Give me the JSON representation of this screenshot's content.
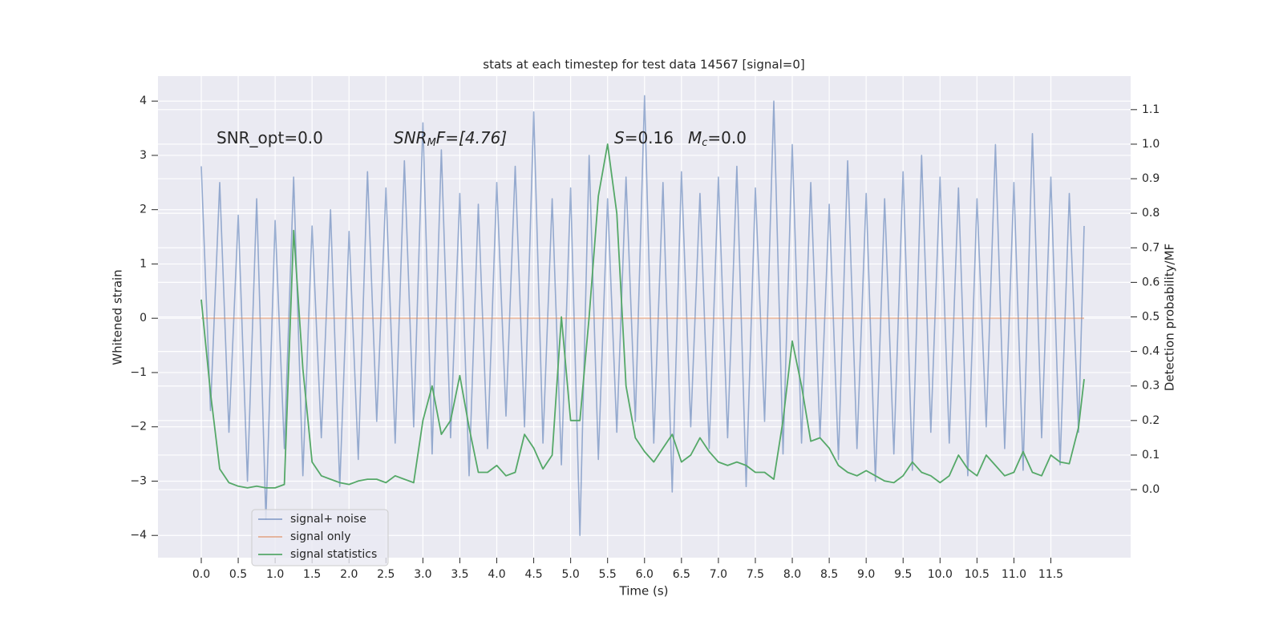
{
  "chart_data": {
    "type": "line",
    "title": "stats at each timestep for test data 14567 [signal=0]",
    "xlabel": "Time (s)",
    "ylabel": "Whitened strain",
    "y2label": "Detection probability/MF",
    "annotations": [
      {
        "parts": [
          "SNR_opt=0.0"
        ]
      },
      {
        "parts": [
          "SNR",
          "M",
          "F=[4.76]"
        ]
      },
      {
        "parts": [
          "S",
          "=0.16"
        ]
      },
      {
        "parts": [
          "M",
          "c",
          "=0.0"
        ]
      }
    ],
    "x": [
      0,
      0.125,
      0.25,
      0.375,
      0.5,
      0.625,
      0.75,
      0.875,
      1.0,
      1.125,
      1.25,
      1.375,
      1.5,
      1.625,
      1.75,
      1.875,
      2.0,
      2.125,
      2.25,
      2.375,
      2.5,
      2.625,
      2.75,
      2.875,
      3.0,
      3.125,
      3.25,
      3.375,
      3.5,
      3.625,
      3.75,
      3.875,
      4.0,
      4.125,
      4.25,
      4.375,
      4.5,
      4.625,
      4.75,
      4.875,
      5.0,
      5.125,
      5.25,
      5.375,
      5.5,
      5.625,
      5.75,
      5.875,
      6.0,
      6.125,
      6.25,
      6.375,
      6.5,
      6.625,
      6.75,
      6.875,
      7.0,
      7.125,
      7.25,
      7.375,
      7.5,
      7.625,
      7.75,
      7.875,
      8.0,
      8.125,
      8.25,
      8.375,
      8.5,
      8.625,
      8.75,
      8.875,
      9.0,
      9.125,
      9.25,
      9.375,
      9.5,
      9.625,
      9.75,
      9.875,
      10.0,
      10.125,
      10.25,
      10.375,
      10.5,
      10.625,
      10.75,
      10.875,
      11.0,
      11.125,
      11.25,
      11.375,
      11.5,
      11.625,
      11.75,
      11.875,
      11.95
    ],
    "series": [
      {
        "name": "signal+ noise",
        "color": "#4c72b0",
        "values": [
          2.8,
          -1.7,
          2.5,
          -2.1,
          1.9,
          -3.0,
          2.2,
          -3.7,
          1.8,
          -2.4,
          2.6,
          -2.9,
          1.7,
          -2.2,
          2.0,
          -3.1,
          1.6,
          -2.6,
          2.7,
          -1.9,
          2.4,
          -2.3,
          2.9,
          -2.0,
          3.6,
          -2.5,
          3.1,
          -2.2,
          2.3,
          -2.9,
          2.1,
          -2.4,
          2.5,
          -1.8,
          2.8,
          -2.0,
          3.8,
          -2.3,
          2.2,
          -2.7,
          2.4,
          -4.0,
          3.0,
          -2.6,
          2.2,
          -2.1,
          2.6,
          -1.9,
          4.1,
          -2.3,
          2.5,
          -3.2,
          2.7,
          -2.0,
          2.3,
          -2.4,
          2.6,
          -2.2,
          2.8,
          -3.1,
          2.4,
          -1.9,
          4.0,
          -2.5,
          3.2,
          -2.3,
          2.5,
          -2.2,
          2.1,
          -2.6,
          2.9,
          -2.4,
          2.3,
          -3.0,
          2.2,
          -2.5,
          2.7,
          -2.8,
          3.0,
          -2.1,
          2.6,
          -2.3,
          2.4,
          -2.9,
          2.2,
          -2.0,
          3.2,
          -2.4,
          2.5,
          -2.8,
          3.4,
          -2.2,
          2.6,
          -2.7,
          2.3,
          -2.1,
          1.7
        ]
      },
      {
        "name": "signal only",
        "color": "#dd8452",
        "values": [
          0,
          0,
          0,
          0,
          0,
          0,
          0,
          0,
          0,
          0,
          0,
          0,
          0,
          0,
          0,
          0,
          0,
          0,
          0,
          0,
          0,
          0,
          0,
          0,
          0,
          0,
          0,
          0,
          0,
          0,
          0,
          0,
          0,
          0,
          0,
          0,
          0,
          0,
          0,
          0,
          0,
          0,
          0,
          0,
          0,
          0,
          0,
          0,
          0,
          0,
          0,
          0,
          0,
          0,
          0,
          0,
          0,
          0,
          0,
          0,
          0,
          0,
          0,
          0,
          0,
          0,
          0,
          0,
          0,
          0,
          0,
          0,
          0,
          0,
          0,
          0,
          0,
          0,
          0,
          0,
          0,
          0,
          0,
          0,
          0,
          0,
          0,
          0,
          0,
          0,
          0,
          0,
          0,
          0,
          0,
          0,
          0
        ]
      },
      {
        "name": "signal statistics",
        "color": "#55a868",
        "axis": "y2",
        "values": [
          0.55,
          0.28,
          0.06,
          0.02,
          0.01,
          0.005,
          0.01,
          0.005,
          0.005,
          0.015,
          0.75,
          0.35,
          0.08,
          0.04,
          0.03,
          0.02,
          0.015,
          0.025,
          0.03,
          0.03,
          0.02,
          0.04,
          0.03,
          0.02,
          0.2,
          0.3,
          0.16,
          0.2,
          0.33,
          0.18,
          0.05,
          0.05,
          0.07,
          0.04,
          0.05,
          0.16,
          0.12,
          0.06,
          0.1,
          0.5,
          0.2,
          0.2,
          0.5,
          0.85,
          1.0,
          0.8,
          0.3,
          0.15,
          0.11,
          0.08,
          0.12,
          0.16,
          0.08,
          0.1,
          0.15,
          0.11,
          0.08,
          0.07,
          0.08,
          0.07,
          0.05,
          0.05,
          0.03,
          0.2,
          0.43,
          0.3,
          0.14,
          0.15,
          0.12,
          0.07,
          0.05,
          0.04,
          0.055,
          0.04,
          0.025,
          0.02,
          0.04,
          0.08,
          0.05,
          0.04,
          0.02,
          0.04,
          0.1,
          0.06,
          0.04,
          0.1,
          0.07,
          0.04,
          0.05,
          0.11,
          0.05,
          0.04,
          0.1,
          0.08,
          0.075,
          0.18,
          0.32
        ]
      }
    ],
    "xlim": [
      -0.586,
      12.58
    ],
    "xticks": [
      {
        "value": 0,
        "label": "0.0"
      },
      0.5,
      {
        "value": 1,
        "label": "1.0"
      },
      1.5,
      {
        "value": 2,
        "label": "2.0"
      },
      2.5,
      {
        "value": 3,
        "label": "3.0"
      },
      3.5,
      {
        "value": 4,
        "label": "4.0"
      },
      4.5,
      {
        "value": 5,
        "label": "5.0"
      },
      5.5,
      {
        "value": 6,
        "label": "6.0"
      },
      6.5,
      {
        "value": 7,
        "label": "7.0"
      },
      7.5,
      {
        "value": 8,
        "label": "8.0"
      },
      8.5,
      {
        "value": 9,
        "label": "9.0"
      },
      9.5,
      {
        "value": 10,
        "label": "10.0"
      },
      10.5,
      {
        "value": 11,
        "label": "11.0"
      },
      11.5
    ],
    "ylim": [
      -4.41,
      4.46
    ],
    "yticks": [
      {
        "value": -4,
        "label": "−4"
      },
      {
        "value": -3,
        "label": "−3"
      },
      {
        "value": -2,
        "label": "−2"
      },
      {
        "value": -1,
        "label": "−1"
      },
      0,
      1,
      2,
      3,
      4
    ],
    "y2lim": [
      -0.197,
      1.197
    ],
    "y2ticks": [
      {
        "value": 0,
        "label": "0.0"
      },
      0.1,
      0.2,
      0.3,
      0.4,
      0.5,
      0.6,
      0.7,
      0.8,
      0.9,
      {
        "value": 1,
        "label": "1.0"
      },
      1.1
    ],
    "grid": true,
    "legend": "lower left"
  }
}
